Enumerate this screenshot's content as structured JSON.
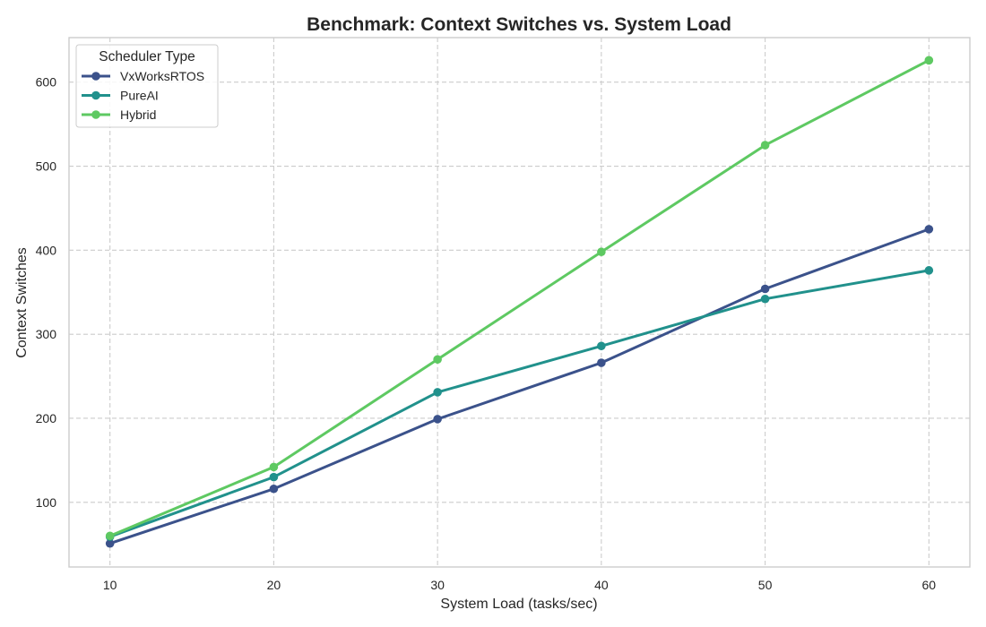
{
  "chart_data": {
    "type": "line",
    "title": "Benchmark: Context Switches vs. System Load",
    "xlabel": "System Load (tasks/sec)",
    "ylabel": "Context Switches",
    "x": [
      10,
      20,
      30,
      40,
      50,
      60
    ],
    "xlim": [
      7.5,
      62.5
    ],
    "ylim": [
      23,
      653
    ],
    "xticks": [
      10,
      20,
      30,
      40,
      50,
      60
    ],
    "yticks": [
      100,
      200,
      300,
      400,
      500,
      600
    ],
    "grid": true,
    "grid_style": "dashed",
    "legend": {
      "title": "Scheduler Type",
      "position": "top-left"
    },
    "series": [
      {
        "name": "VxWorksRTOS",
        "color": "#3b528b",
        "values": [
          51,
          116,
          199,
          266,
          354,
          425
        ]
      },
      {
        "name": "PureAI",
        "color": "#21918c",
        "values": [
          59,
          130,
          231,
          286,
          342,
          376
        ]
      },
      {
        "name": "Hybrid",
        "color": "#5ec962",
        "values": [
          60,
          142,
          270,
          398,
          525,
          626
        ]
      }
    ]
  }
}
